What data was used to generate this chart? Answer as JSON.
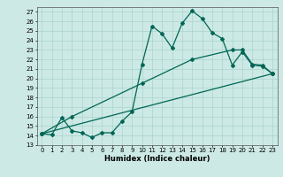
{
  "xlabel": "Humidex (Indice chaleur)",
  "background_color": "#cce9e5",
  "grid_color": "#aad4cc",
  "line_color": "#006655",
  "xlim": [
    -0.5,
    23.5
  ],
  "ylim": [
    13,
    27.5
  ],
  "yticks": [
    13,
    14,
    15,
    16,
    17,
    18,
    19,
    20,
    21,
    22,
    23,
    24,
    25,
    26,
    27
  ],
  "xticks": [
    0,
    1,
    2,
    3,
    4,
    5,
    6,
    7,
    8,
    9,
    10,
    11,
    12,
    13,
    14,
    15,
    16,
    17,
    18,
    19,
    20,
    21,
    22,
    23
  ],
  "line1_x": [
    0,
    1,
    2,
    3,
    4,
    5,
    6,
    7,
    8,
    9,
    10,
    11,
    12,
    13,
    14,
    15,
    16,
    17,
    18,
    19,
    20,
    21,
    22,
    23
  ],
  "line1_y": [
    14.2,
    14.1,
    15.9,
    14.5,
    14.3,
    13.8,
    14.3,
    14.3,
    15.5,
    16.5,
    21.5,
    25.5,
    24.7,
    23.2,
    25.8,
    27.1,
    26.3,
    24.8,
    24.2,
    21.4,
    22.8,
    21.4,
    21.3,
    20.5
  ],
  "line2_x": [
    0,
    3,
    10,
    15,
    19,
    20,
    21,
    22,
    23
  ],
  "line2_y": [
    14.2,
    16.0,
    19.5,
    22.0,
    23.0,
    23.0,
    21.5,
    21.4,
    20.5
  ],
  "line3_x": [
    0,
    23
  ],
  "line3_y": [
    14.2,
    20.5
  ]
}
